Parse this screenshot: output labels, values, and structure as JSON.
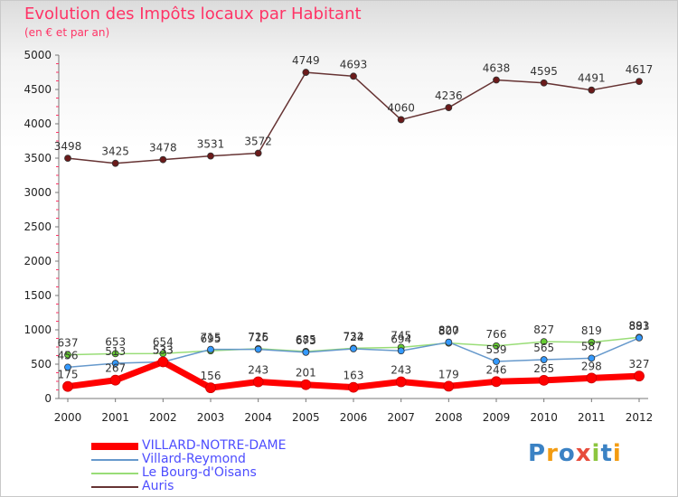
{
  "header": {
    "title": "Evolution des Impôts locaux par Habitant",
    "subtitle": "(en € et par an)"
  },
  "logo": {
    "text": "Proxiti",
    "colors": [
      "#3b82c4",
      "#f39c12",
      "#3b82c4",
      "#e74c3c",
      "#8cc63f",
      "#3b82c4",
      "#f39c12"
    ]
  },
  "chart_data": {
    "type": "line",
    "title": "Evolution des Impôts locaux par Habitant",
    "subtitle": "(en € et par an)",
    "xlabel": "",
    "ylabel": "",
    "ylim": [
      0,
      5000
    ],
    "yticks": [
      0,
      500,
      1000,
      1500,
      2000,
      2500,
      3000,
      3500,
      4000,
      4500,
      5000
    ],
    "grid": false,
    "legend_position": "bottom-left",
    "categories": [
      "2000",
      "2001",
      "2002",
      "2003",
      "2004",
      "2005",
      "2006",
      "2007",
      "2008",
      "2009",
      "2010",
      "2011",
      "2012"
    ],
    "series": [
      {
        "name": "VILLARD-NOTRE-DAME",
        "color": "#ff0000",
        "marker_color": "#ff0000",
        "width": 7,
        "labels": true,
        "values": [
          175,
          267,
          533,
          156,
          243,
          201,
          163,
          243,
          179,
          246,
          265,
          298,
          327
        ]
      },
      {
        "name": "Villard-Reymond",
        "color": "#6699cc",
        "marker_color": "#3399ff",
        "width": 1.5,
        "labels": true,
        "values": [
          456,
          513,
          533,
          715,
          716,
          673,
          724,
          694,
          820,
          539,
          565,
          587,
          883
        ]
      },
      {
        "name": "Le Bourg-d'Oisans",
        "color": "#99dd77",
        "marker_color": "#66cc33",
        "width": 1.5,
        "labels": true,
        "values": [
          637,
          653,
          654,
          695,
          725,
          685,
          732,
          745,
          807,
          766,
          827,
          819,
          891
        ]
      },
      {
        "name": "Auris",
        "color": "#663333",
        "marker_color": "#6b1a1a",
        "width": 1.5,
        "labels": true,
        "values": [
          3498,
          3425,
          3478,
          3531,
          3572,
          4749,
          4693,
          4060,
          4236,
          4638,
          4595,
          4491,
          4617
        ]
      }
    ]
  }
}
